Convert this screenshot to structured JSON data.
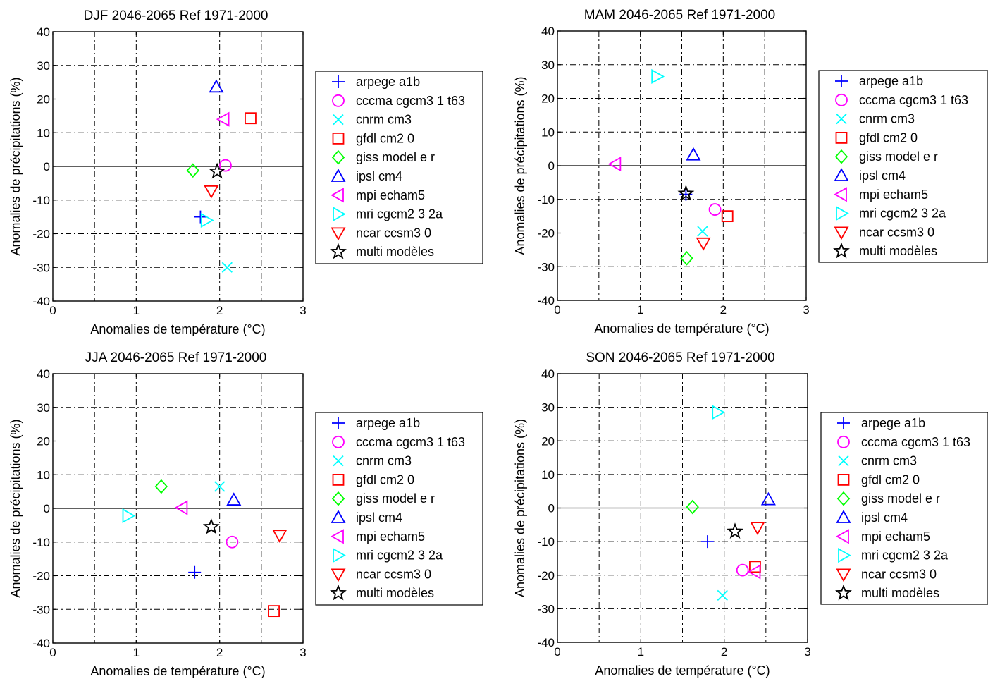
{
  "colors": {
    "arpege": "#0000ff",
    "cccma": "#ff00ff",
    "cnrm": "#00ffff",
    "gfdl": "#ff0000",
    "giss": "#00ff00",
    "ipsl": "#0000ff",
    "mpi": "#ff00ff",
    "mri": "#00ffff",
    "ncar": "#ff0000",
    "multi": "#000000"
  },
  "legend_entries": [
    {
      "key": "arpege",
      "label": "arpege a1b",
      "marker": "plus"
    },
    {
      "key": "cccma",
      "label": "cccma cgcm3 1 t63",
      "marker": "circle"
    },
    {
      "key": "cnrm",
      "label": "cnrm cm3",
      "marker": "x"
    },
    {
      "key": "gfdl",
      "label": "gfdl cm2 0",
      "marker": "square"
    },
    {
      "key": "giss",
      "label": "giss model e r",
      "marker": "diamond"
    },
    {
      "key": "ipsl",
      "label": "ipsl cm4",
      "marker": "triangle-up"
    },
    {
      "key": "mpi",
      "label": "mpi echam5",
      "marker": "triangle-left"
    },
    {
      "key": "mri",
      "label": "mri cgcm2 3 2a",
      "marker": "triangle-right"
    },
    {
      "key": "ncar",
      "label": "ncar ccsm3 0",
      "marker": "triangle-down"
    },
    {
      "key": "multi",
      "label": "multi modèles",
      "marker": "star"
    }
  ],
  "chart_data": [
    {
      "type": "scatter",
      "title": "DJF 2046-2065  Ref 1971-2000",
      "xlabel": "Anomalies de température (°C)",
      "ylabel": "Anomalies de précipitations (%)",
      "xlim": [
        0,
        3
      ],
      "ylim": [
        -40,
        40
      ],
      "xticks": [
        "0",
        "1",
        "2",
        "3"
      ],
      "yticks": [
        "-40",
        "-30",
        "-20",
        "-10",
        "0",
        "10",
        "20",
        "30",
        "40"
      ],
      "grid": "dash-dot",
      "legend_position": "right",
      "points": [
        {
          "key": "arpege",
          "x": 1.77,
          "y": -15
        },
        {
          "key": "cccma",
          "x": 2.07,
          "y": 0.3
        },
        {
          "key": "cnrm",
          "x": 2.09,
          "y": -30
        },
        {
          "key": "gfdl",
          "x": 2.37,
          "y": 14.3
        },
        {
          "key": "giss",
          "x": 1.68,
          "y": -1.2
        },
        {
          "key": "ipsl",
          "x": 1.96,
          "y": 23.6
        },
        {
          "key": "mpi",
          "x": 2.05,
          "y": 14
        },
        {
          "key": "mri",
          "x": 1.84,
          "y": -16
        },
        {
          "key": "ncar",
          "x": 1.9,
          "y": -7.3
        },
        {
          "key": "multi",
          "x": 1.97,
          "y": -1.5
        }
      ]
    },
    {
      "type": "scatter",
      "title": "MAM 2046-2065  Ref 1971-2000",
      "xlabel": "Anomalies de température (°C)",
      "ylabel": "Anomalies de précipitations (%)",
      "xlim": [
        0,
        3
      ],
      "ylim": [
        -40,
        40
      ],
      "xticks": [
        "0",
        "1",
        "2",
        "3"
      ],
      "yticks": [
        "-40",
        "-30",
        "-20",
        "-10",
        "0",
        "10",
        "20",
        "30",
        "40"
      ],
      "grid": "dash-dot",
      "legend_position": "right",
      "points": [
        {
          "key": "cccma",
          "x": 1.9,
          "y": -13
        },
        {
          "key": "cnrm",
          "x": 1.75,
          "y": -19.5
        },
        {
          "key": "gfdl",
          "x": 2.05,
          "y": -15
        },
        {
          "key": "giss",
          "x": 1.56,
          "y": -27.5
        },
        {
          "key": "ipsl",
          "x": 1.64,
          "y": 3.2
        },
        {
          "key": "mpi",
          "x": 0.7,
          "y": 0.5
        },
        {
          "key": "mri",
          "x": 1.2,
          "y": 26.5
        },
        {
          "key": "ncar",
          "x": 1.76,
          "y": -23
        },
        {
          "key": "arpege",
          "x": 1.55,
          "y": -8.5
        },
        {
          "key": "multi",
          "x": 1.55,
          "y": -8.3
        }
      ]
    },
    {
      "type": "scatter",
      "title": "JJA 2046-2065  Ref 1971-2000",
      "xlabel": "Anomalies de température (°C)",
      "ylabel": "Anomalies de précipitations (%)",
      "xlim": [
        0,
        3
      ],
      "ylim": [
        -40,
        40
      ],
      "xticks": [
        "0",
        "1",
        "2",
        "3"
      ],
      "yticks": [
        "-40",
        "-30",
        "-20",
        "-10",
        "0",
        "10",
        "20",
        "30",
        "40"
      ],
      "grid": "dash-dot",
      "legend_position": "right",
      "points": [
        {
          "key": "arpege",
          "x": 1.7,
          "y": -19
        },
        {
          "key": "cccma",
          "x": 2.15,
          "y": -10
        },
        {
          "key": "cnrm",
          "x": 2.0,
          "y": 6.5
        },
        {
          "key": "gfdl",
          "x": 2.65,
          "y": -30.5
        },
        {
          "key": "giss",
          "x": 1.3,
          "y": 6.5
        },
        {
          "key": "ipsl",
          "x": 2.17,
          "y": 2.5
        },
        {
          "key": "mpi",
          "x": 1.55,
          "y": 0.2
        },
        {
          "key": "mri",
          "x": 0.9,
          "y": -2.2
        },
        {
          "key": "ncar",
          "x": 2.72,
          "y": -8
        },
        {
          "key": "multi",
          "x": 1.9,
          "y": -5.5
        }
      ]
    },
    {
      "type": "scatter",
      "title": "SON 2046-2065  Ref 1971-2000",
      "xlabel": "Anomalies de température (°C)",
      "ylabel": "Anomalies de précipitations (%)",
      "xlim": [
        0,
        3
      ],
      "ylim": [
        -40,
        40
      ],
      "xticks": [
        "0",
        "1",
        "2",
        "3"
      ],
      "yticks": [
        "-40",
        "-30",
        "-20",
        "-10",
        "0",
        "10",
        "20",
        "30",
        "40"
      ],
      "grid": "dash-dot",
      "legend_position": "right",
      "points": [
        {
          "key": "arpege",
          "x": 1.8,
          "y": -10
        },
        {
          "key": "cccma",
          "x": 2.22,
          "y": -18.5
        },
        {
          "key": "cnrm",
          "x": 1.98,
          "y": -26
        },
        {
          "key": "gfdl",
          "x": 2.37,
          "y": -17.5
        },
        {
          "key": "giss",
          "x": 1.62,
          "y": 0.3
        },
        {
          "key": "ipsl",
          "x": 2.53,
          "y": 2.5
        },
        {
          "key": "mpi",
          "x": 2.37,
          "y": -19
        },
        {
          "key": "mri",
          "x": 1.92,
          "y": 28.5
        },
        {
          "key": "ncar",
          "x": 2.4,
          "y": -5.8
        },
        {
          "key": "multi",
          "x": 2.13,
          "y": -7
        }
      ]
    }
  ]
}
